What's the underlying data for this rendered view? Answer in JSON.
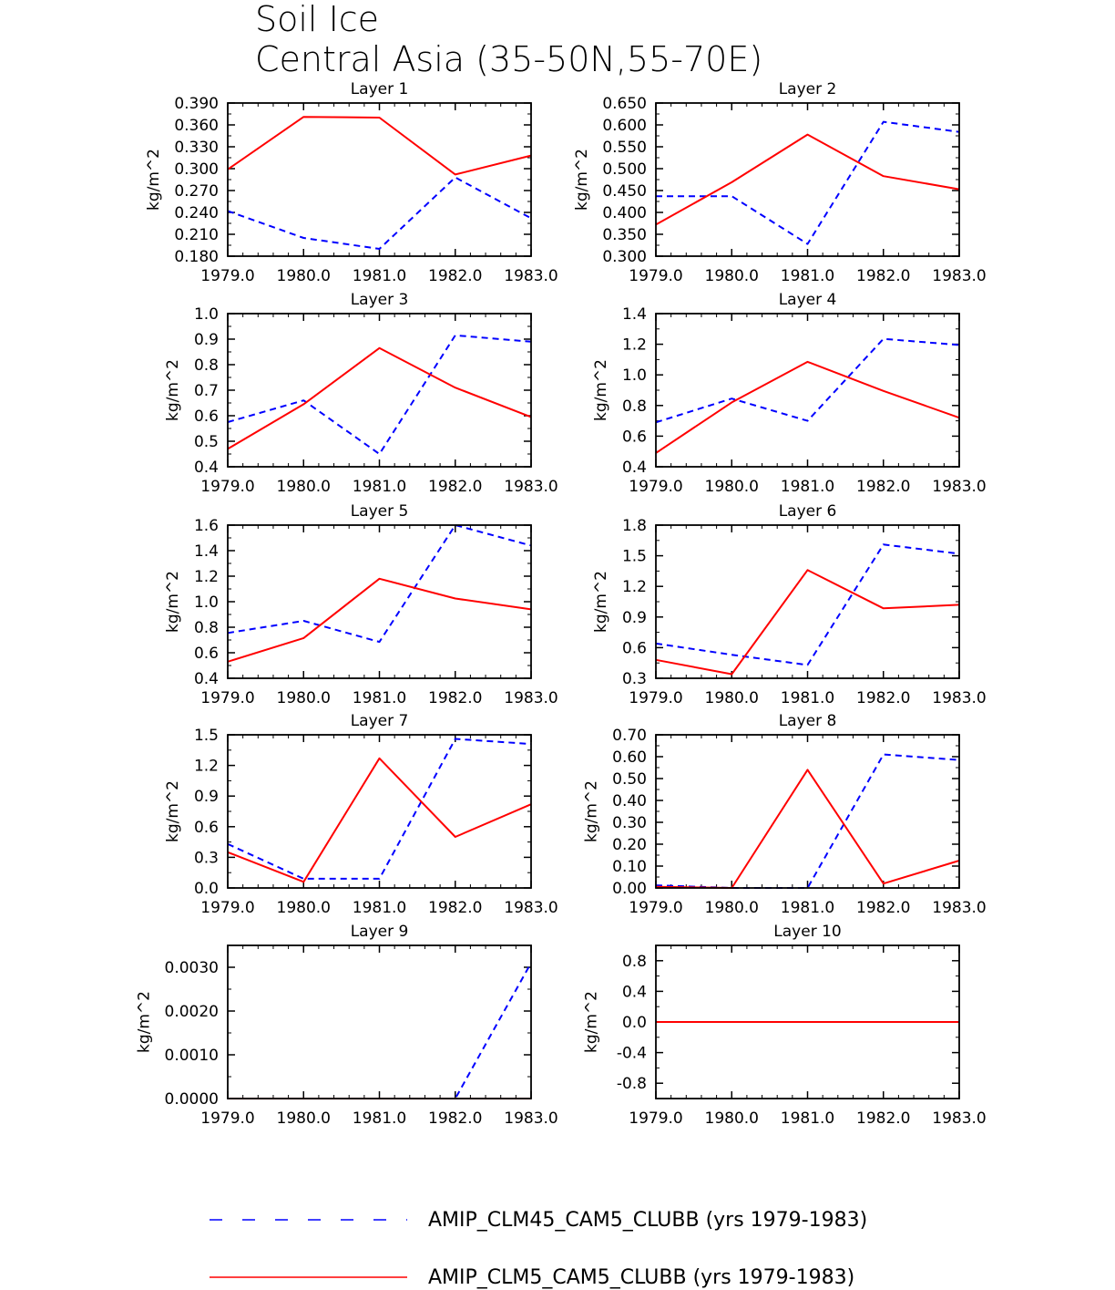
{
  "title": [
    "Soil Ice",
    "Central Asia (35-50N,55-70E)"
  ],
  "legend": [
    {
      "name": "AMIP_CLM45_CAM5_CLUBB (yrs 1979-1983)",
      "color": "#0000ff",
      "style": "dashed"
    },
    {
      "name": "AMIP_CLM5_CAM5_CLUBB (yrs 1979-1983)",
      "color": "#ff0000",
      "style": "solid"
    }
  ],
  "chart_data": [
    {
      "type": "line",
      "title": "Layer 1",
      "ylabel": "kg/m^2",
      "x": [
        1979,
        1980,
        1981,
        1982,
        1983
      ],
      "xticks": [
        "1979.0",
        "1980.0",
        "1981.0",
        "1982.0",
        "1983.0"
      ],
      "ylim": [
        0.18,
        0.39
      ],
      "yticks": [
        "0.180",
        "0.210",
        "0.240",
        "0.270",
        "0.300",
        "0.330",
        "0.360",
        "0.390"
      ],
      "series": [
        {
          "name": "AMIP_CLM45_CAM5_CLUBB (yrs 1979-1983)",
          "values": [
            0.242,
            0.205,
            0.19,
            0.288,
            0.232
          ]
        },
        {
          "name": "AMIP_CLM5_CAM5_CLUBB (yrs 1979-1983)",
          "values": [
            0.299,
            0.371,
            0.37,
            0.292,
            0.318
          ]
        }
      ]
    },
    {
      "type": "line",
      "title": "Layer 2",
      "ylabel": "kg/m^2",
      "x": [
        1979,
        1980,
        1981,
        1982,
        1983
      ],
      "xticks": [
        "1979.0",
        "1980.0",
        "1981.0",
        "1982.0",
        "1983.0"
      ],
      "ylim": [
        0.3,
        0.65
      ],
      "yticks": [
        "0.300",
        "0.350",
        "0.400",
        "0.450",
        "0.500",
        "0.550",
        "0.600",
        "0.650"
      ],
      "series": [
        {
          "name": "AMIP_CLM45_CAM5_CLUBB (yrs 1979-1983)",
          "values": [
            0.437,
            0.437,
            0.328,
            0.607,
            0.584
          ]
        },
        {
          "name": "AMIP_CLM5_CAM5_CLUBB (yrs 1979-1983)",
          "values": [
            0.372,
            0.469,
            0.578,
            0.483,
            0.453
          ]
        }
      ]
    },
    {
      "type": "line",
      "title": "Layer 3",
      "ylabel": "kg/m^2",
      "x": [
        1979,
        1980,
        1981,
        1982,
        1983
      ],
      "xticks": [
        "1979.0",
        "1980.0",
        "1981.0",
        "1982.0",
        "1983.0"
      ],
      "ylim": [
        0.4,
        1.0
      ],
      "yticks": [
        "0.4",
        "0.5",
        "0.6",
        "0.7",
        "0.8",
        "0.9",
        "1.0"
      ],
      "series": [
        {
          "name": "AMIP_CLM45_CAM5_CLUBB (yrs 1979-1983)",
          "values": [
            0.575,
            0.66,
            0.45,
            0.915,
            0.89
          ]
        },
        {
          "name": "AMIP_CLM5_CAM5_CLUBB (yrs 1979-1983)",
          "values": [
            0.47,
            0.645,
            0.865,
            0.71,
            0.595
          ]
        }
      ]
    },
    {
      "type": "line",
      "title": "Layer 4",
      "ylabel": "kg/m^2",
      "x": [
        1979,
        1980,
        1981,
        1982,
        1983
      ],
      "xticks": [
        "1979.0",
        "1980.0",
        "1981.0",
        "1982.0",
        "1983.0"
      ],
      "ylim": [
        0.4,
        1.4
      ],
      "yticks": [
        "0.4",
        "0.6",
        "0.8",
        "1.0",
        "1.2",
        "1.4"
      ],
      "series": [
        {
          "name": "AMIP_CLM45_CAM5_CLUBB (yrs 1979-1983)",
          "values": [
            0.69,
            0.845,
            0.7,
            1.235,
            1.195
          ]
        },
        {
          "name": "AMIP_CLM5_CAM5_CLUBB (yrs 1979-1983)",
          "values": [
            0.49,
            0.82,
            1.085,
            0.895,
            0.72
          ]
        }
      ]
    },
    {
      "type": "line",
      "title": "Layer 5",
      "ylabel": "kg/m^2",
      "x": [
        1979,
        1980,
        1981,
        1982,
        1983
      ],
      "xticks": [
        "1979.0",
        "1980.0",
        "1981.0",
        "1982.0",
        "1983.0"
      ],
      "ylim": [
        0.4,
        1.6
      ],
      "yticks": [
        "0.4",
        "0.6",
        "0.8",
        "1.0",
        "1.2",
        "1.4",
        "1.6"
      ],
      "series": [
        {
          "name": "AMIP_CLM45_CAM5_CLUBB (yrs 1979-1983)",
          "values": [
            0.755,
            0.85,
            0.685,
            1.6,
            1.44
          ]
        },
        {
          "name": "AMIP_CLM5_CAM5_CLUBB (yrs 1979-1983)",
          "values": [
            0.53,
            0.715,
            1.18,
            1.025,
            0.94
          ]
        }
      ]
    },
    {
      "type": "line",
      "title": "Layer 6",
      "ylabel": "kg/m^2",
      "x": [
        1979,
        1980,
        1981,
        1982,
        1983
      ],
      "xticks": [
        "1979.0",
        "1980.0",
        "1981.0",
        "1982.0",
        "1983.0"
      ],
      "ylim": [
        0.3,
        1.8
      ],
      "yticks": [
        "0.3",
        "0.6",
        "0.9",
        "1.2",
        "1.5",
        "1.8"
      ],
      "series": [
        {
          "name": "AMIP_CLM45_CAM5_CLUBB (yrs 1979-1983)",
          "values": [
            0.64,
            0.53,
            0.43,
            1.61,
            1.52
          ]
        },
        {
          "name": "AMIP_CLM5_CAM5_CLUBB (yrs 1979-1983)",
          "values": [
            0.48,
            0.34,
            1.36,
            0.985,
            1.02
          ]
        }
      ]
    },
    {
      "type": "line",
      "title": "Layer 7",
      "ylabel": "kg/m^2",
      "x": [
        1979,
        1980,
        1981,
        1982,
        1983
      ],
      "xticks": [
        "1979.0",
        "1980.0",
        "1981.0",
        "1982.0",
        "1983.0"
      ],
      "ylim": [
        0.0,
        1.5
      ],
      "yticks": [
        "0.0",
        "0.3",
        "0.6",
        "0.9",
        "1.2",
        "1.5"
      ],
      "series": [
        {
          "name": "AMIP_CLM45_CAM5_CLUBB (yrs 1979-1983)",
          "values": [
            0.43,
            0.09,
            0.09,
            1.46,
            1.41
          ]
        },
        {
          "name": "AMIP_CLM5_CAM5_CLUBB (yrs 1979-1983)",
          "values": [
            0.35,
            0.06,
            1.27,
            0.5,
            0.82
          ]
        }
      ]
    },
    {
      "type": "line",
      "title": "Layer 8",
      "ylabel": "kg/m^2",
      "x": [
        1979,
        1980,
        1981,
        1982,
        1983
      ],
      "xticks": [
        "1979.0",
        "1980.0",
        "1981.0",
        "1982.0",
        "1983.0"
      ],
      "ylim": [
        0.0,
        0.7
      ],
      "yticks": [
        "0.00",
        "0.10",
        "0.20",
        "0.30",
        "0.40",
        "0.50",
        "0.60",
        "0.70"
      ],
      "series": [
        {
          "name": "AMIP_CLM45_CAM5_CLUBB (yrs 1979-1983)",
          "values": [
            0.012,
            0.0,
            0.0,
            0.61,
            0.585
          ]
        },
        {
          "name": "AMIP_CLM5_CAM5_CLUBB (yrs 1979-1983)",
          "values": [
            0.005,
            0.0,
            0.54,
            0.02,
            0.125
          ]
        }
      ]
    },
    {
      "type": "line",
      "title": "Layer 9",
      "ylabel": "kg/m^2",
      "x": [
        1979,
        1980,
        1981,
        1982,
        1983
      ],
      "xticks": [
        "1979.0",
        "1980.0",
        "1981.0",
        "1982.0",
        "1983.0"
      ],
      "ylim": [
        0.0,
        0.0035
      ],
      "yticks": [
        "0.0000",
        "0.0010",
        "0.0020",
        "0.0030"
      ],
      "series": [
        {
          "name": "AMIP_CLM45_CAM5_CLUBB (yrs 1979-1983)",
          "values": [
            0.0,
            0.0,
            0.0,
            0.0,
            0.0031
          ]
        },
        {
          "name": "AMIP_CLM5_CAM5_CLUBB (yrs 1979-1983)",
          "values": [
            0.0,
            0.0,
            0.0,
            0.0,
            0.0
          ]
        }
      ]
    },
    {
      "type": "line",
      "title": "Layer 10",
      "ylabel": "kg/m^2",
      "x": [
        1979,
        1980,
        1981,
        1982,
        1983
      ],
      "xticks": [
        "1979.0",
        "1980.0",
        "1981.0",
        "1982.0",
        "1983.0"
      ],
      "ylim": [
        -1.0,
        1.0
      ],
      "yticks": [
        "-0.8",
        "-0.4",
        "0.0",
        "0.4",
        "0.8"
      ],
      "series": [
        {
          "name": "AMIP_CLM45_CAM5_CLUBB (yrs 1979-1983)",
          "values": [
            0.0,
            0.0,
            0.0,
            0.0,
            0.0
          ]
        },
        {
          "name": "AMIP_CLM5_CAM5_CLUBB (yrs 1979-1983)",
          "values": [
            0.0,
            0.0,
            0.0,
            0.0,
            0.0
          ]
        }
      ]
    }
  ]
}
